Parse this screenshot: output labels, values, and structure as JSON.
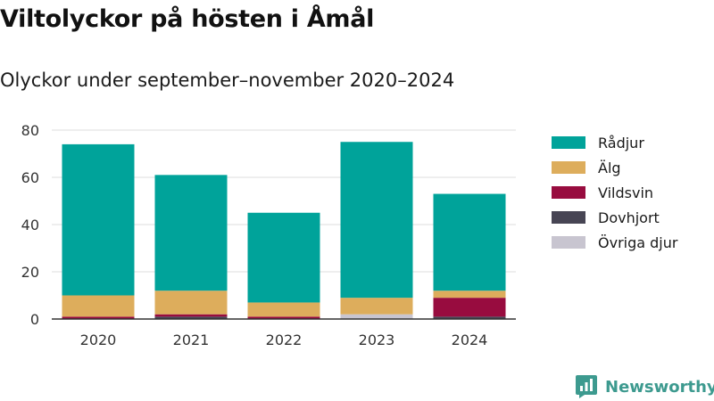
{
  "header": {
    "title": "Viltolyckor på hösten i Åmål",
    "subtitle": "Olyckor under september–november 2020–2024"
  },
  "chart_data": {
    "type": "bar",
    "stacked": true,
    "categories": [
      "2020",
      "2021",
      "2022",
      "2023",
      "2024"
    ],
    "series": [
      {
        "name": "Övriga djur",
        "color": "#c8c5d0",
        "values": [
          0,
          0,
          0,
          2,
          0
        ]
      },
      {
        "name": "Dovhjort",
        "color": "#474554",
        "values": [
          0,
          1,
          0,
          0,
          1
        ]
      },
      {
        "name": "Vildsvin",
        "color": "#980c3f",
        "values": [
          1,
          1,
          1,
          0,
          8
        ]
      },
      {
        "name": "Älg",
        "color": "#ddad5c",
        "values": [
          9,
          10,
          6,
          7,
          3
        ]
      },
      {
        "name": "Rådjur",
        "color": "#00a39a",
        "values": [
          64,
          49,
          38,
          66,
          41
        ]
      }
    ],
    "totals": [
      74,
      61,
      45,
      75,
      53
    ],
    "ylim": [
      0,
      80
    ],
    "yticks": [
      0,
      20,
      40,
      60,
      80
    ],
    "grid": true,
    "legend": "right",
    "xlabel": "",
    "ylabel": ""
  },
  "legend": {
    "items": [
      {
        "label": "Rådjur",
        "color": "#00a39a"
      },
      {
        "label": "Älg",
        "color": "#ddad5c"
      },
      {
        "label": "Vildsvin",
        "color": "#980c3f"
      },
      {
        "label": "Dovhjort",
        "color": "#474554"
      },
      {
        "label": "Övriga djur",
        "color": "#c8c5d0"
      }
    ]
  },
  "branding": {
    "name": "Newsworthy",
    "icon": "newsworthy-logo-icon",
    "color": "#3d9a8f"
  }
}
